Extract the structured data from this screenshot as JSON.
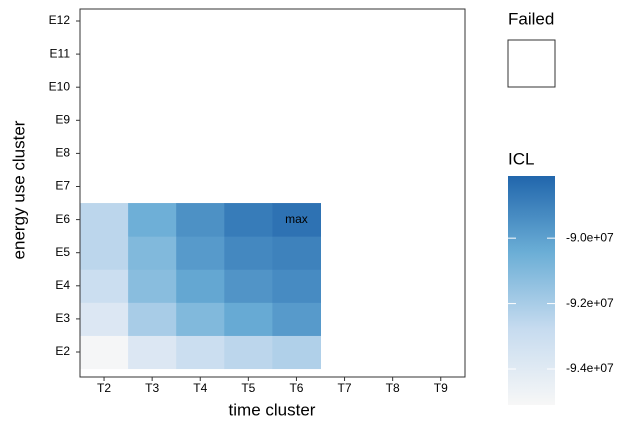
{
  "chart_data": {
    "type": "heatmap",
    "x_label": "time cluster",
    "y_label": "energy use cluster",
    "x_categories": [
      "T2",
      "T3",
      "T4",
      "T5",
      "T6",
      "T7",
      "T8",
      "T9"
    ],
    "y_categories": [
      "E2",
      "E3",
      "E4",
      "E5",
      "E6",
      "E7",
      "E8",
      "E9",
      "E10",
      "E11",
      "E12"
    ],
    "values": [
      [
        -95000000,
        -93800000,
        -93000000,
        -92500000,
        -92200000,
        null,
        null,
        null
      ],
      [
        -93800000,
        -92000000,
        -91000000,
        -90300000,
        -89800000,
        null,
        null,
        null
      ],
      [
        -93000000,
        -91200000,
        -90200000,
        -89600000,
        -89300000,
        null,
        null,
        null
      ],
      [
        -92500000,
        -91000000,
        -89800000,
        -89200000,
        -89000000,
        null,
        null,
        null
      ],
      [
        -92500000,
        -90500000,
        -89500000,
        -88800000,
        -88500000,
        null,
        null,
        null
      ],
      [
        null,
        null,
        null,
        null,
        null,
        null,
        null,
        null
      ],
      [
        null,
        null,
        null,
        null,
        null,
        null,
        null,
        null
      ],
      [
        null,
        null,
        null,
        null,
        null,
        null,
        null,
        null
      ],
      [
        null,
        null,
        null,
        null,
        null,
        null,
        null,
        null
      ],
      [
        null,
        null,
        null,
        null,
        null,
        null,
        null,
        null
      ],
      [
        null,
        null,
        null,
        null,
        null,
        null,
        null,
        null
      ]
    ],
    "annotation": {
      "text": "max",
      "x": "T6",
      "y": "E6"
    },
    "failed_legend_title": "Failed",
    "colorbar_title": "ICL",
    "colorscale": [
      "#f7f7f7",
      "#c6dbef",
      "#6baed6",
      "#2166ac"
    ],
    "zlim": [
      -95100000,
      -88100000
    ],
    "zticks": [
      {
        "value": -90000000,
        "label": "-9.0e+07"
      },
      {
        "value": -92000000,
        "label": "-9.2e+07"
      },
      {
        "value": -94000000,
        "label": "-9.4e+07"
      }
    ]
  }
}
